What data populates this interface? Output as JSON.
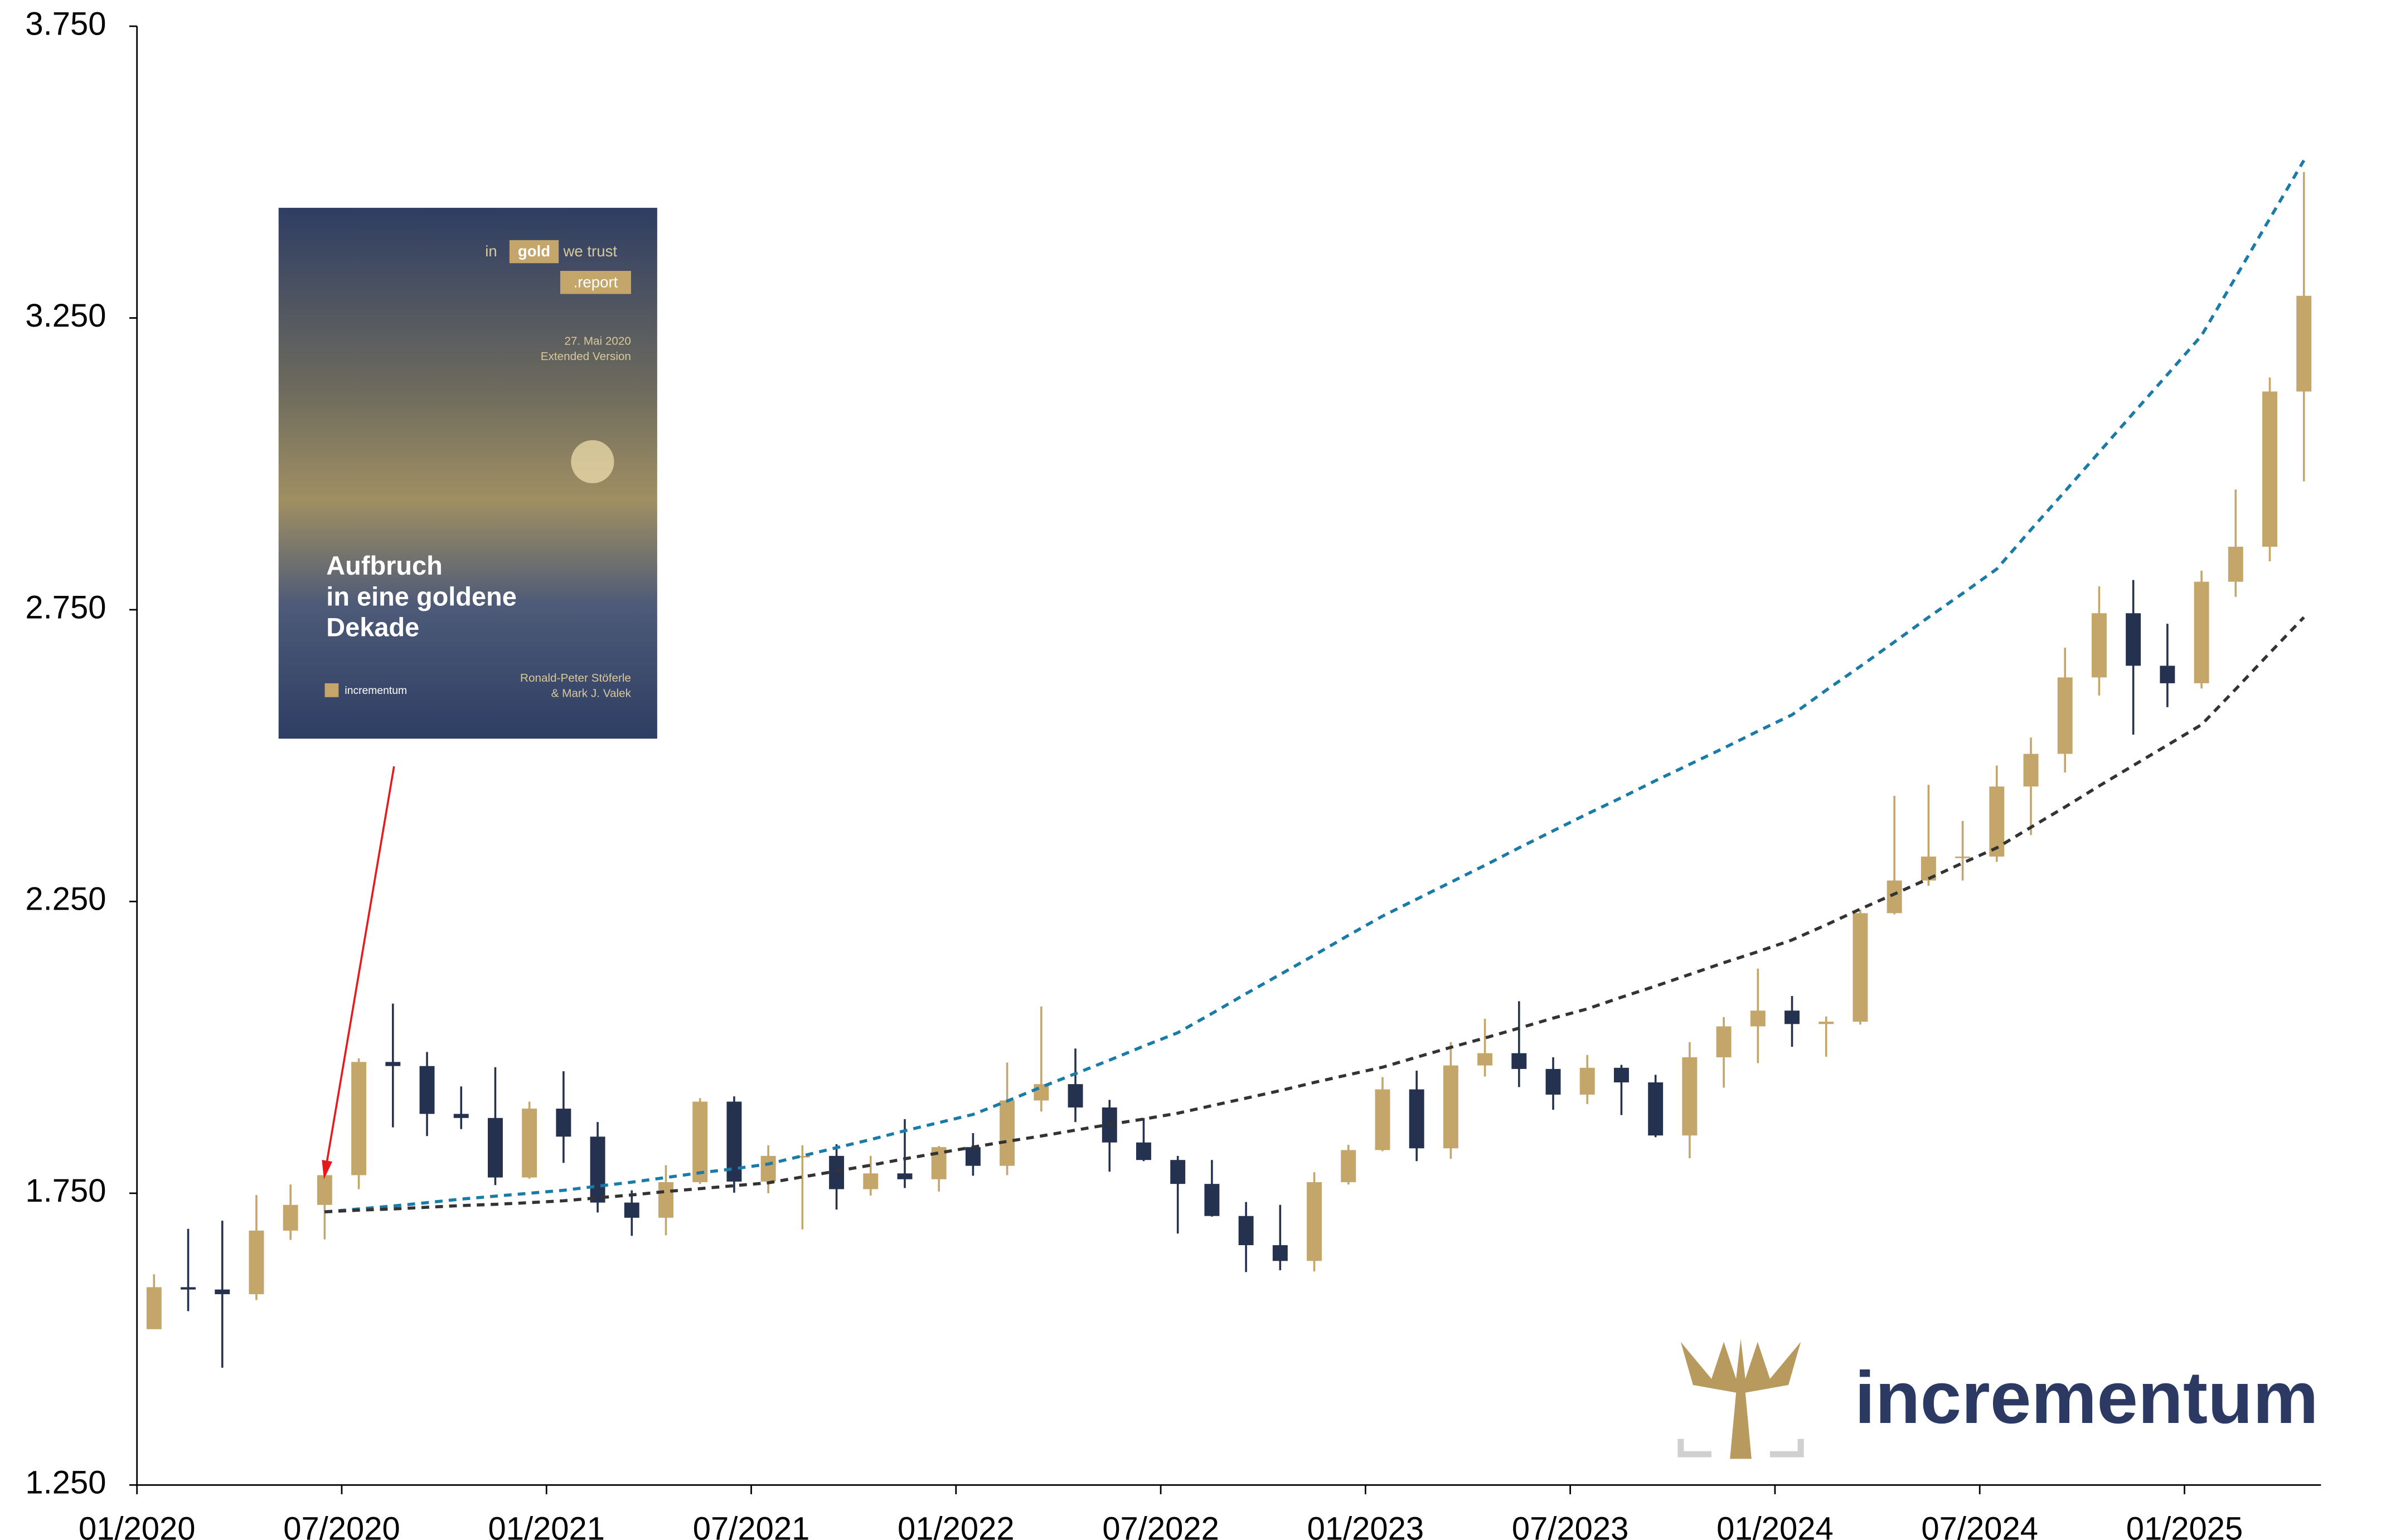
{
  "chart_data": {
    "type": "candlestick",
    "categories": [
      "01/2020",
      null,
      null,
      null,
      null,
      null,
      "07/2020",
      null,
      null,
      null,
      null,
      null,
      "01/2021",
      null,
      null,
      null,
      null,
      null,
      "07/2021",
      null,
      null,
      null,
      null,
      null,
      "01/2022",
      null,
      null,
      null,
      null,
      null,
      "07/2022",
      null,
      null,
      null,
      null,
      null,
      "01/2023",
      null,
      null,
      null,
      null,
      null,
      "07/2023",
      null,
      null,
      null,
      null,
      null,
      "01/2024",
      null,
      null,
      null,
      null,
      null,
      "07/2024",
      null,
      null,
      null,
      null,
      null,
      "01/2025",
      null,
      null,
      null
    ],
    "open": [
      1517,
      1589,
      1585,
      1577,
      1686,
      1730,
      1781,
      1975,
      1968,
      1886,
      1879,
      1777,
      1895,
      1847,
      1734,
      1708,
      1769,
      1907,
      1770,
      1814,
      1814,
      1757,
      1784,
      1774,
      1829,
      1797,
      1909,
      1937,
      1897,
      1837,
      1807,
      1766,
      1711,
      1661,
      1634,
      1769,
      1824,
      1928,
      1827,
      1969,
      1990,
      1963,
      1919,
      1965,
      1940,
      1849,
      1983,
      2036,
      2063,
      2040,
      2044,
      2230,
      2286,
      2327,
      2327,
      2447,
      2503,
      2634,
      2744,
      2654,
      2624,
      2798,
      2858,
      3124
    ],
    "high": [
      1611,
      1689,
      1703,
      1747,
      1765,
      1789,
      1981,
      2075,
      1992,
      1933,
      1966,
      1907,
      1959,
      1872,
      1755,
      1798,
      1913,
      1916,
      1832,
      1832,
      1834,
      1814,
      1877,
      1831,
      1853,
      1974,
      2070,
      1998,
      1910,
      1879,
      1814,
      1807,
      1735,
      1730,
      1786,
      1833,
      1949,
      1960,
      2009,
      2049,
      2079,
      1983,
      1987,
      1970,
      1953,
      2009,
      2052,
      2135,
      2088,
      2053,
      2236,
      2431,
      2450,
      2388,
      2483,
      2531,
      2685,
      2790,
      2801,
      2726,
      2817,
      2956,
      3148,
      3500
    ],
    "low": [
      1517,
      1548,
      1451,
      1567,
      1670,
      1671,
      1757,
      1863,
      1848,
      1860,
      1764,
      1775,
      1802,
      1717,
      1677,
      1678,
      1766,
      1751,
      1750,
      1688,
      1722,
      1746,
      1759,
      1753,
      1780,
      1781,
      1890,
      1872,
      1787,
      1805,
      1681,
      1710,
      1615,
      1618,
      1616,
      1765,
      1822,
      1805,
      1809,
      1950,
      1932,
      1893,
      1903,
      1884,
      1846,
      1810,
      1931,
      1973,
      2001,
      1984,
      2039,
      2228,
      2277,
      2286,
      2318,
      2364,
      2471,
      2603,
      2536,
      2583,
      2615,
      2772,
      2833,
      2970
    ],
    "close": [
      1589,
      1585,
      1577,
      1686,
      1730,
      1781,
      1975,
      1968,
      1886,
      1879,
      1777,
      1895,
      1847,
      1734,
      1708,
      1769,
      1907,
      1770,
      1814,
      1814,
      1757,
      1784,
      1774,
      1829,
      1797,
      1909,
      1937,
      1897,
      1837,
      1807,
      1766,
      1711,
      1661,
      1634,
      1769,
      1824,
      1928,
      1827,
      1969,
      1990,
      1963,
      1919,
      1965,
      1940,
      1849,
      1983,
      2036,
      2063,
      2040,
      2044,
      2230,
      2286,
      2327,
      2327,
      2447,
      2503,
      2634,
      2744,
      2654,
      2624,
      2798,
      2858,
      3124,
      3288
    ],
    "up_color": "#c4a56a",
    "down_color": "#25324f",
    "lines": [
      {
        "color": "#1a7aa8",
        "values": [
          null,
          null,
          null,
          null,
          null,
          1718,
          1723,
          1728,
          1734,
          1740,
          1745,
          1750,
          1755,
          1762,
          1769,
          1777,
          1785,
          1792,
          1800,
          1814,
          1828,
          1842,
          1857,
          1871,
          1885,
          1908,
          1932,
          1955,
          1978,
          2002,
          2025,
          2058,
          2092,
          2125,
          2158,
          2192,
          2225,
          2254,
          2283,
          2312,
          2342,
          2371,
          2400,
          2428,
          2457,
          2485,
          2513,
          2542,
          2570,
          2612,
          2653,
          2695,
          2737,
          2778,
          2820,
          2887,
          2953,
          3020,
          3087,
          3153,
          3220,
          3320,
          3420,
          3520
        ]
      },
      {
        "color": "#333333",
        "values": [
          null,
          null,
          null,
          null,
          null,
          1718,
          1721,
          1723,
          1726,
          1729,
          1731,
          1734,
          1737,
          1742,
          1747,
          1753,
          1758,
          1763,
          1768,
          1778,
          1788,
          1798,
          1809,
          1819,
          1829,
          1839,
          1848,
          1858,
          1868,
          1877,
          1887,
          1900,
          1913,
          1926,
          1940,
          1953,
          1966,
          1983,
          2000,
          2016,
          2033,
          2050,
          2066,
          2086,
          2105,
          2125,
          2145,
          2164,
          2184,
          2210,
          2237,
          2263,
          2289,
          2316,
          2342,
          2377,
          2412,
          2448,
          2483,
          2518,
          2553,
          2614,
          2676,
          2737
        ]
      }
    ],
    "ylim": [
      1250,
      3750
    ],
    "yticks": [
      {
        "value": 1250,
        "label": "1.250"
      },
      {
        "value": 1750,
        "label": "1.750"
      },
      {
        "value": 2250,
        "label": "2.250"
      },
      {
        "value": 2750,
        "label": "2.750"
      },
      {
        "value": 3250,
        "label": "3.250"
      },
      {
        "value": 3750,
        "label": "3.750"
      }
    ],
    "grid": false,
    "arrow_color": "#e8191c"
  },
  "cover": {
    "in": "in",
    "gold": "gold",
    "we_trust": "we trust",
    "report": ".report",
    "date": "27. Mai 2020",
    "version": "Extended Version",
    "title": [
      "Aufbruch",
      "in eine goldene",
      "Dekade"
    ],
    "brand": "incrementum",
    "authors": [
      "Ronald-Peter Stöferle",
      "& Mark J. Valek"
    ]
  },
  "logo": {
    "text": "incrementum"
  }
}
